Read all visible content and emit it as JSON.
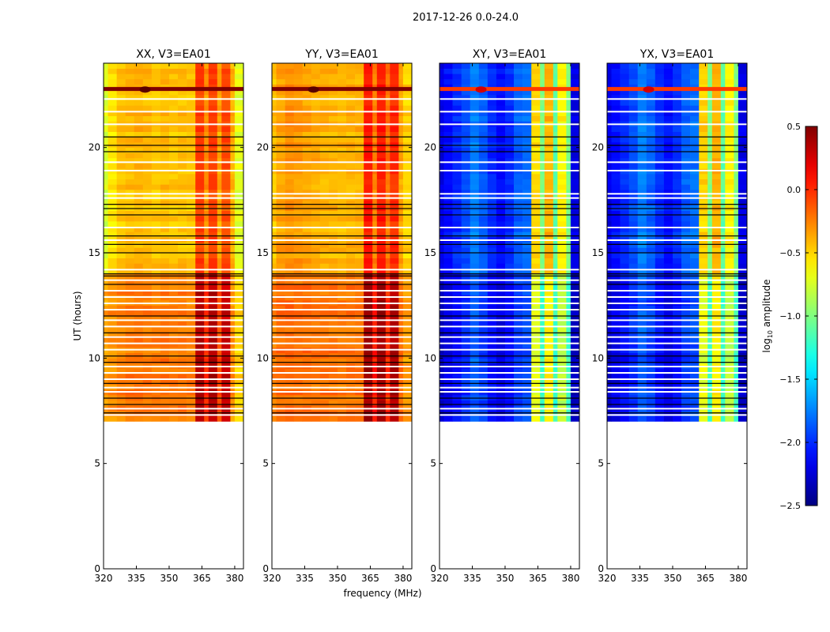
{
  "chart_data": {
    "type": "heatmap",
    "title": "2017-12-26 0.0-24.0",
    "xlabel": "frequency (MHz)",
    "ylabel": "UT (hours)",
    "xlim": [
      320,
      384
    ],
    "ylim": [
      0,
      24
    ],
    "xticks": [
      320,
      335,
      350,
      365,
      380
    ],
    "xtick_labels": [
      "320",
      "335",
      "350",
      "365",
      "380"
    ],
    "yticks": [
      0,
      5,
      10,
      15,
      20
    ],
    "ytick_labels": [
      "0",
      "5",
      "10",
      "15",
      "20"
    ],
    "data_time_range": [
      7.0,
      24.0
    ],
    "freq_bin_edges_mhz": [
      320,
      322,
      326,
      330,
      334,
      338,
      342,
      346,
      350,
      354,
      358,
      362,
      366,
      368,
      372,
      374,
      378,
      380,
      384
    ],
    "flagged_black_hours": [
      7.4,
      7.8,
      8.1,
      8.8,
      9.8,
      10.1,
      11.2,
      12.0,
      13.5,
      13.9,
      14.0,
      15.0,
      15.4,
      15.8,
      16.8,
      17.1,
      17.3,
      19.8,
      20.1,
      20.5
    ],
    "missing_white_hours": [
      7.3,
      7.6,
      8.4,
      8.6,
      9.0,
      9.3,
      9.6,
      10.4,
      10.7,
      11.0,
      11.5,
      11.8,
      12.3,
      12.6,
      12.9,
      13.2,
      13.7,
      14.2,
      15.6,
      16.2,
      17.6,
      17.8,
      18.9,
      19.3,
      21.1,
      21.7,
      22.3
    ],
    "rfi_event_hour": 22.75,
    "panels": [
      {
        "title": "XX, V3=EA01",
        "late_profile": [
          -0.75,
          -0.55,
          -0.45,
          -0.42,
          -0.4,
          -0.42,
          -0.45,
          -0.43,
          -0.45,
          -0.44,
          -0.45,
          -0.05,
          -0.3,
          -0.05,
          -0.35,
          -0.1,
          -0.4,
          -0.7
        ],
        "early_profile": [
          -0.35,
          -0.3,
          -0.25,
          -0.22,
          -0.22,
          -0.22,
          -0.24,
          -0.22,
          -0.24,
          -0.22,
          -0.24,
          0.35,
          0.0,
          0.35,
          -0.1,
          0.3,
          -0.3,
          -0.5
        ]
      },
      {
        "title": "YY, V3=EA01",
        "late_profile": [
          -0.45,
          -0.35,
          -0.3,
          -0.32,
          -0.35,
          -0.38,
          -0.4,
          -0.4,
          -0.42,
          -0.4,
          -0.4,
          0.05,
          -0.25,
          0.05,
          -0.2,
          0.0,
          -0.35,
          -0.5
        ],
        "early_profile": [
          -0.25,
          -0.2,
          -0.18,
          -0.2,
          -0.2,
          -0.22,
          -0.22,
          -0.22,
          -0.24,
          -0.22,
          -0.22,
          0.4,
          0.05,
          0.4,
          0.0,
          0.35,
          -0.2,
          -0.35
        ]
      },
      {
        "title": "XY, V3=EA01",
        "late_profile": [
          -2.2,
          -2.1,
          -2.0,
          -1.9,
          -1.75,
          -1.85,
          -2.0,
          -2.1,
          -2.0,
          -1.85,
          -1.8,
          -0.5,
          -1.0,
          -0.4,
          -1.1,
          -0.6,
          -1.0,
          -2.2
        ],
        "early_profile": [
          -2.3,
          -2.2,
          -2.1,
          -2.0,
          -1.85,
          -1.95,
          -2.1,
          -2.2,
          -2.1,
          -1.95,
          -1.9,
          -0.7,
          -1.2,
          -0.6,
          -1.2,
          -0.8,
          -1.2,
          -2.3
        ]
      },
      {
        "title": "YX, V3=EA01",
        "late_profile": [
          -2.2,
          -2.1,
          -2.0,
          -1.9,
          -1.75,
          -1.85,
          -2.0,
          -2.1,
          -2.0,
          -1.85,
          -1.8,
          -0.5,
          -1.0,
          -0.4,
          -1.1,
          -0.6,
          -1.0,
          -2.2
        ],
        "early_profile": [
          -2.3,
          -2.2,
          -2.1,
          -2.0,
          -1.85,
          -1.95,
          -2.1,
          -2.2,
          -2.1,
          -1.95,
          -1.9,
          -0.7,
          -1.2,
          -0.6,
          -1.2,
          -0.8,
          -1.2,
          -2.3
        ]
      }
    ],
    "colorbar": {
      "label": "log10 amplitude",
      "label_main": "log",
      "label_sub": "10",
      "label_rest": " amplitude",
      "range": [
        -2.5,
        0.5
      ],
      "ticks": [
        0.5,
        0.0,
        -0.5,
        -1.0,
        -1.5,
        -2.0,
        -2.5
      ],
      "tick_labels": [
        "0.5",
        "0.0",
        "−0.5",
        "−1.0",
        "−1.5",
        "−2.0",
        "−2.5"
      ],
      "colormap": "jet"
    }
  }
}
